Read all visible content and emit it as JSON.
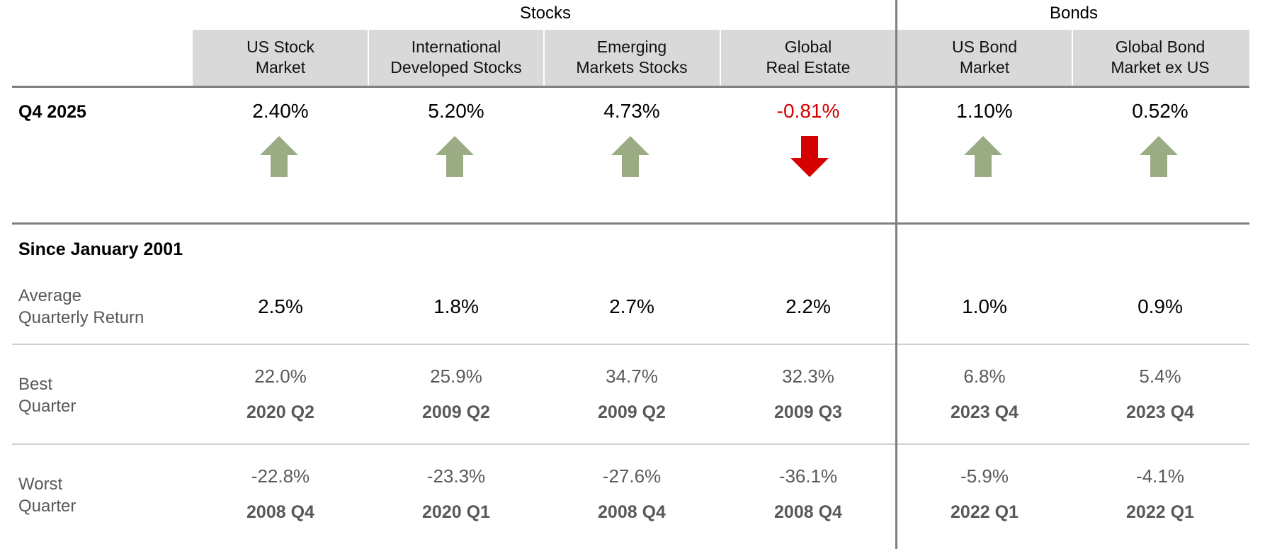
{
  "groups": {
    "stocks": "Stocks",
    "bonds": "Bonds"
  },
  "colors": {
    "up": "#9bab84",
    "down": "#d50000",
    "header_bg": "#d9d9d9",
    "rule": "#7f7f7f"
  },
  "columns": [
    {
      "line1": "US Stock",
      "line2": "Market",
      "q4": "2.40%",
      "direction": "up",
      "avg": "2.5%",
      "best_pct": "22.0%",
      "best_q": "2020 Q2",
      "worst_pct": "-22.8%",
      "worst_q": "2008 Q4"
    },
    {
      "line1": "International",
      "line2": "Developed Stocks",
      "q4": "5.20%",
      "direction": "up",
      "avg": "1.8%",
      "best_pct": "25.9%",
      "best_q": "2009 Q2",
      "worst_pct": "-23.3%",
      "worst_q": "2020 Q1"
    },
    {
      "line1": "Emerging",
      "line2": "Markets Stocks",
      "q4": "4.73%",
      "direction": "up",
      "avg": "2.7%",
      "best_pct": "34.7%",
      "best_q": "2009 Q2",
      "worst_pct": "-27.6%",
      "worst_q": "2008 Q4"
    },
    {
      "line1": "Global",
      "line2": "Real Estate",
      "q4": "-0.81%",
      "direction": "down",
      "avg": "2.2%",
      "best_pct": "32.3%",
      "best_q": "2009 Q3",
      "worst_pct": "-36.1%",
      "worst_q": "2008 Q4"
    },
    {
      "line1": "US Bond",
      "line2": "Market",
      "q4": "1.10%",
      "direction": "up",
      "avg": "1.0%",
      "best_pct": "6.8%",
      "best_q": "2023 Q4",
      "worst_pct": "-5.9%",
      "worst_q": "2022 Q1"
    },
    {
      "line1": "Global Bond",
      "line2": "Market ex US",
      "q4": "0.52%",
      "direction": "up",
      "avg": "0.9%",
      "best_pct": "5.4%",
      "best_q": "2023 Q4",
      "worst_pct": "-4.1%",
      "worst_q": "2022 Q1"
    }
  ],
  "sections": {
    "q4_title": "Q4 2025",
    "since_title": "Since January 2001"
  },
  "row_labels": {
    "avg_line1": "Average",
    "avg_line2": "Quarterly Return",
    "best_line1": "Best",
    "best_line2": "Quarter",
    "worst_line1": "Worst",
    "worst_line2": "Quarter"
  }
}
